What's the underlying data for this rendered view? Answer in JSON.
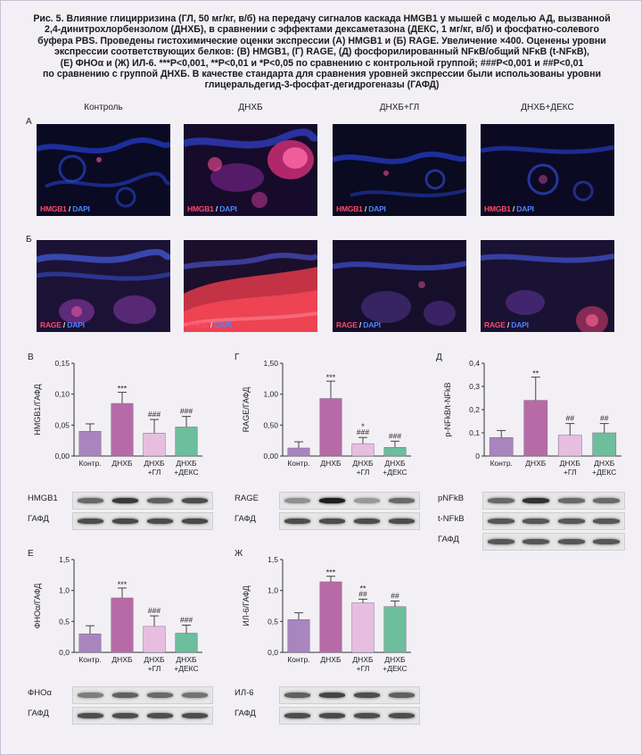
{
  "caption": {
    "lines": [
      "Рис. 5. Влияние глицирризина (ГЛ, 50 мг/кг, в/б) на передачу сигналов каскада HMGB1 у мышей с моделью АД, вызванной",
      "2,4-динитрохлорбензолом (ДНХБ), в сравнении с эффектами дексаметазона (ДЕКС, 1 мг/кг, в/б) и фосфатно-солевого",
      "буфера PBS. Проведены гистохимические оценки экспрессии (А) HMGB1 и (Б) RAGE. Увеличение ×400. Оценены уровни",
      "экспрессии соответствующих белков: (В) HMGB1, (Г) RAGE, (Д) фосфорилированный NFκB/общий NFκB (t-NFκB),",
      "(Е) ФНОα и (Ж) ИЛ-6. ***P<0,001, **P<0,01 и *P<0,05 по сравнению с контрольной группой; ###P<0,001 и ##P<0,01",
      "по сравнению с группой ДНХБ. В качестве стандарта для сравнения уровней экспрессии были использованы уровни",
      "глицеральдегид-3-фосфат-дегидрогеназы (ГАФД)"
    ]
  },
  "row_labels": {
    "a": "А",
    "b": "Б"
  },
  "column_titles": [
    "Контроль",
    "ДНХБ",
    "ДНХБ+ГЛ",
    "ДНХБ+ДЕКС"
  ],
  "micro_label_a": {
    "marker": "HMGB1",
    "sep": " / ",
    "dapi": "DAPI"
  },
  "micro_label_b": {
    "marker": "RAGE",
    "sep": " / ",
    "dapi": "DAPI"
  },
  "colors": {
    "control": "#a985be",
    "dnhb": "#b66ba6",
    "gl": "#e7bee0",
    "deks": "#6cbe9c"
  },
  "chart_data": [
    {
      "id": "v",
      "panel": "В",
      "type": "bar",
      "ylabel": "HMGB1/ГАФД",
      "categories": [
        "Контр.",
        "ДНХБ",
        "ДНХБ\n+ГЛ",
        "ДНХБ\n+ДЕКС"
      ],
      "values": [
        0.04,
        0.085,
        0.037,
        0.047
      ],
      "errors": [
        0.012,
        0.018,
        0.022,
        0.017
      ],
      "ylim": [
        0,
        0.15
      ],
      "yticks": [
        0,
        0.05,
        0.1,
        0.15
      ],
      "ytick_labels": [
        "0,00",
        "0,05",
        "0,10",
        "0,15"
      ],
      "annotations": [
        [
          "",
          ""
        ],
        [
          "***",
          ""
        ],
        [
          "",
          "###"
        ],
        [
          "",
          "###"
        ]
      ]
    },
    {
      "id": "g",
      "panel": "Г",
      "type": "bar",
      "ylabel": "RAGE/ГАФД",
      "categories": [
        "Контр.",
        "ДНХБ",
        "ДНХБ\n+ГЛ",
        "ДНХБ\n+ДЕКС"
      ],
      "values": [
        0.13,
        0.93,
        0.2,
        0.14
      ],
      "errors": [
        0.1,
        0.28,
        0.1,
        0.1
      ],
      "ylim": [
        0,
        1.5
      ],
      "yticks": [
        0,
        0.5,
        1.0,
        1.5
      ],
      "ytick_labels": [
        "0,00",
        "0,50",
        "1,00",
        "1,50"
      ],
      "annotations": [
        [
          "",
          ""
        ],
        [
          "***",
          ""
        ],
        [
          "*",
          "###"
        ],
        [
          "",
          "###"
        ]
      ]
    },
    {
      "id": "d",
      "panel": "Д",
      "type": "bar",
      "ylabel": "p-NFkB/t-NFkB",
      "categories": [
        "Контр.",
        "ДНХБ",
        "ДНХБ\n+ГЛ",
        "ДНХБ\n+ДЕКС"
      ],
      "values": [
        0.08,
        0.24,
        0.09,
        0.1
      ],
      "errors": [
        0.03,
        0.1,
        0.05,
        0.04
      ],
      "ylim": [
        0,
        0.4
      ],
      "yticks": [
        0,
        0.1,
        0.2,
        0.3,
        0.4
      ],
      "ytick_labels": [
        "0",
        "0,1",
        "0,2",
        "0,3",
        "0,4"
      ],
      "annotations": [
        [
          "",
          ""
        ],
        [
          "**",
          ""
        ],
        [
          "",
          "##"
        ],
        [
          "",
          "##"
        ]
      ]
    },
    {
      "id": "e",
      "panel": "Е",
      "type": "bar",
      "ylabel": "ФНОα/ГАФД",
      "categories": [
        "Контр.",
        "ДНХБ",
        "ДНХБ\n+ГЛ",
        "ДНХБ\n+ДЕКС"
      ],
      "values": [
        0.3,
        0.88,
        0.42,
        0.31
      ],
      "errors": [
        0.13,
        0.16,
        0.17,
        0.13
      ],
      "ylim": [
        0,
        1.5
      ],
      "yticks": [
        0,
        0.5,
        1.0,
        1.5
      ],
      "ytick_labels": [
        "0,0",
        "0,5",
        "1,0",
        "1,5"
      ],
      "annotations": [
        [
          "",
          ""
        ],
        [
          "***",
          ""
        ],
        [
          "",
          "###"
        ],
        [
          "",
          "###"
        ]
      ]
    },
    {
      "id": "zh",
      "panel": "Ж",
      "type": "bar",
      "ylabel": "ИЛ-6/ГАФД",
      "categories": [
        "Контр.",
        "ДНХБ",
        "ДНХБ\n+ГЛ",
        "ДНХБ\n+ДЕКС"
      ],
      "values": [
        0.53,
        1.14,
        0.8,
        0.74
      ],
      "errors": [
        0.11,
        0.09,
        0.06,
        0.09
      ],
      "ylim": [
        0,
        1.5
      ],
      "yticks": [
        0,
        0.5,
        1.0,
        1.5
      ],
      "ytick_labels": [
        "0,0",
        "0,5",
        "1,0",
        "1,5"
      ],
      "annotations": [
        [
          "",
          ""
        ],
        [
          "***",
          ""
        ],
        [
          "**",
          "##"
        ],
        [
          "",
          "##"
        ]
      ]
    }
  ],
  "blots": {
    "v": [
      {
        "name": "HMGB1",
        "intensity": [
          0.55,
          0.8,
          0.6,
          0.7
        ]
      },
      {
        "name": "ГАФД",
        "intensity": [
          0.7,
          0.72,
          0.7,
          0.72
        ]
      }
    ],
    "g": [
      {
        "name": "RAGE",
        "intensity": [
          0.35,
          0.95,
          0.3,
          0.55
        ]
      },
      {
        "name": "ГАФД",
        "intensity": [
          0.7,
          0.7,
          0.7,
          0.7
        ]
      }
    ],
    "d": [
      {
        "name": "pNFkB",
        "intensity": [
          0.55,
          0.85,
          0.55,
          0.55
        ]
      },
      {
        "name": "t-NFkB",
        "intensity": [
          0.65,
          0.65,
          0.65,
          0.65
        ]
      },
      {
        "name": "ГАФД",
        "intensity": [
          0.65,
          0.65,
          0.65,
          0.65
        ]
      }
    ],
    "e": [
      {
        "name": "ФНОα",
        "intensity": [
          0.45,
          0.6,
          0.55,
          0.5
        ]
      },
      {
        "name": "ГАФД",
        "intensity": [
          0.7,
          0.7,
          0.7,
          0.7
        ]
      }
    ],
    "zh": [
      {
        "name": "ИЛ-6",
        "intensity": [
          0.6,
          0.75,
          0.7,
          0.6
        ]
      },
      {
        "name": "ГАФД",
        "intensity": [
          0.7,
          0.72,
          0.7,
          0.7
        ]
      }
    ]
  }
}
